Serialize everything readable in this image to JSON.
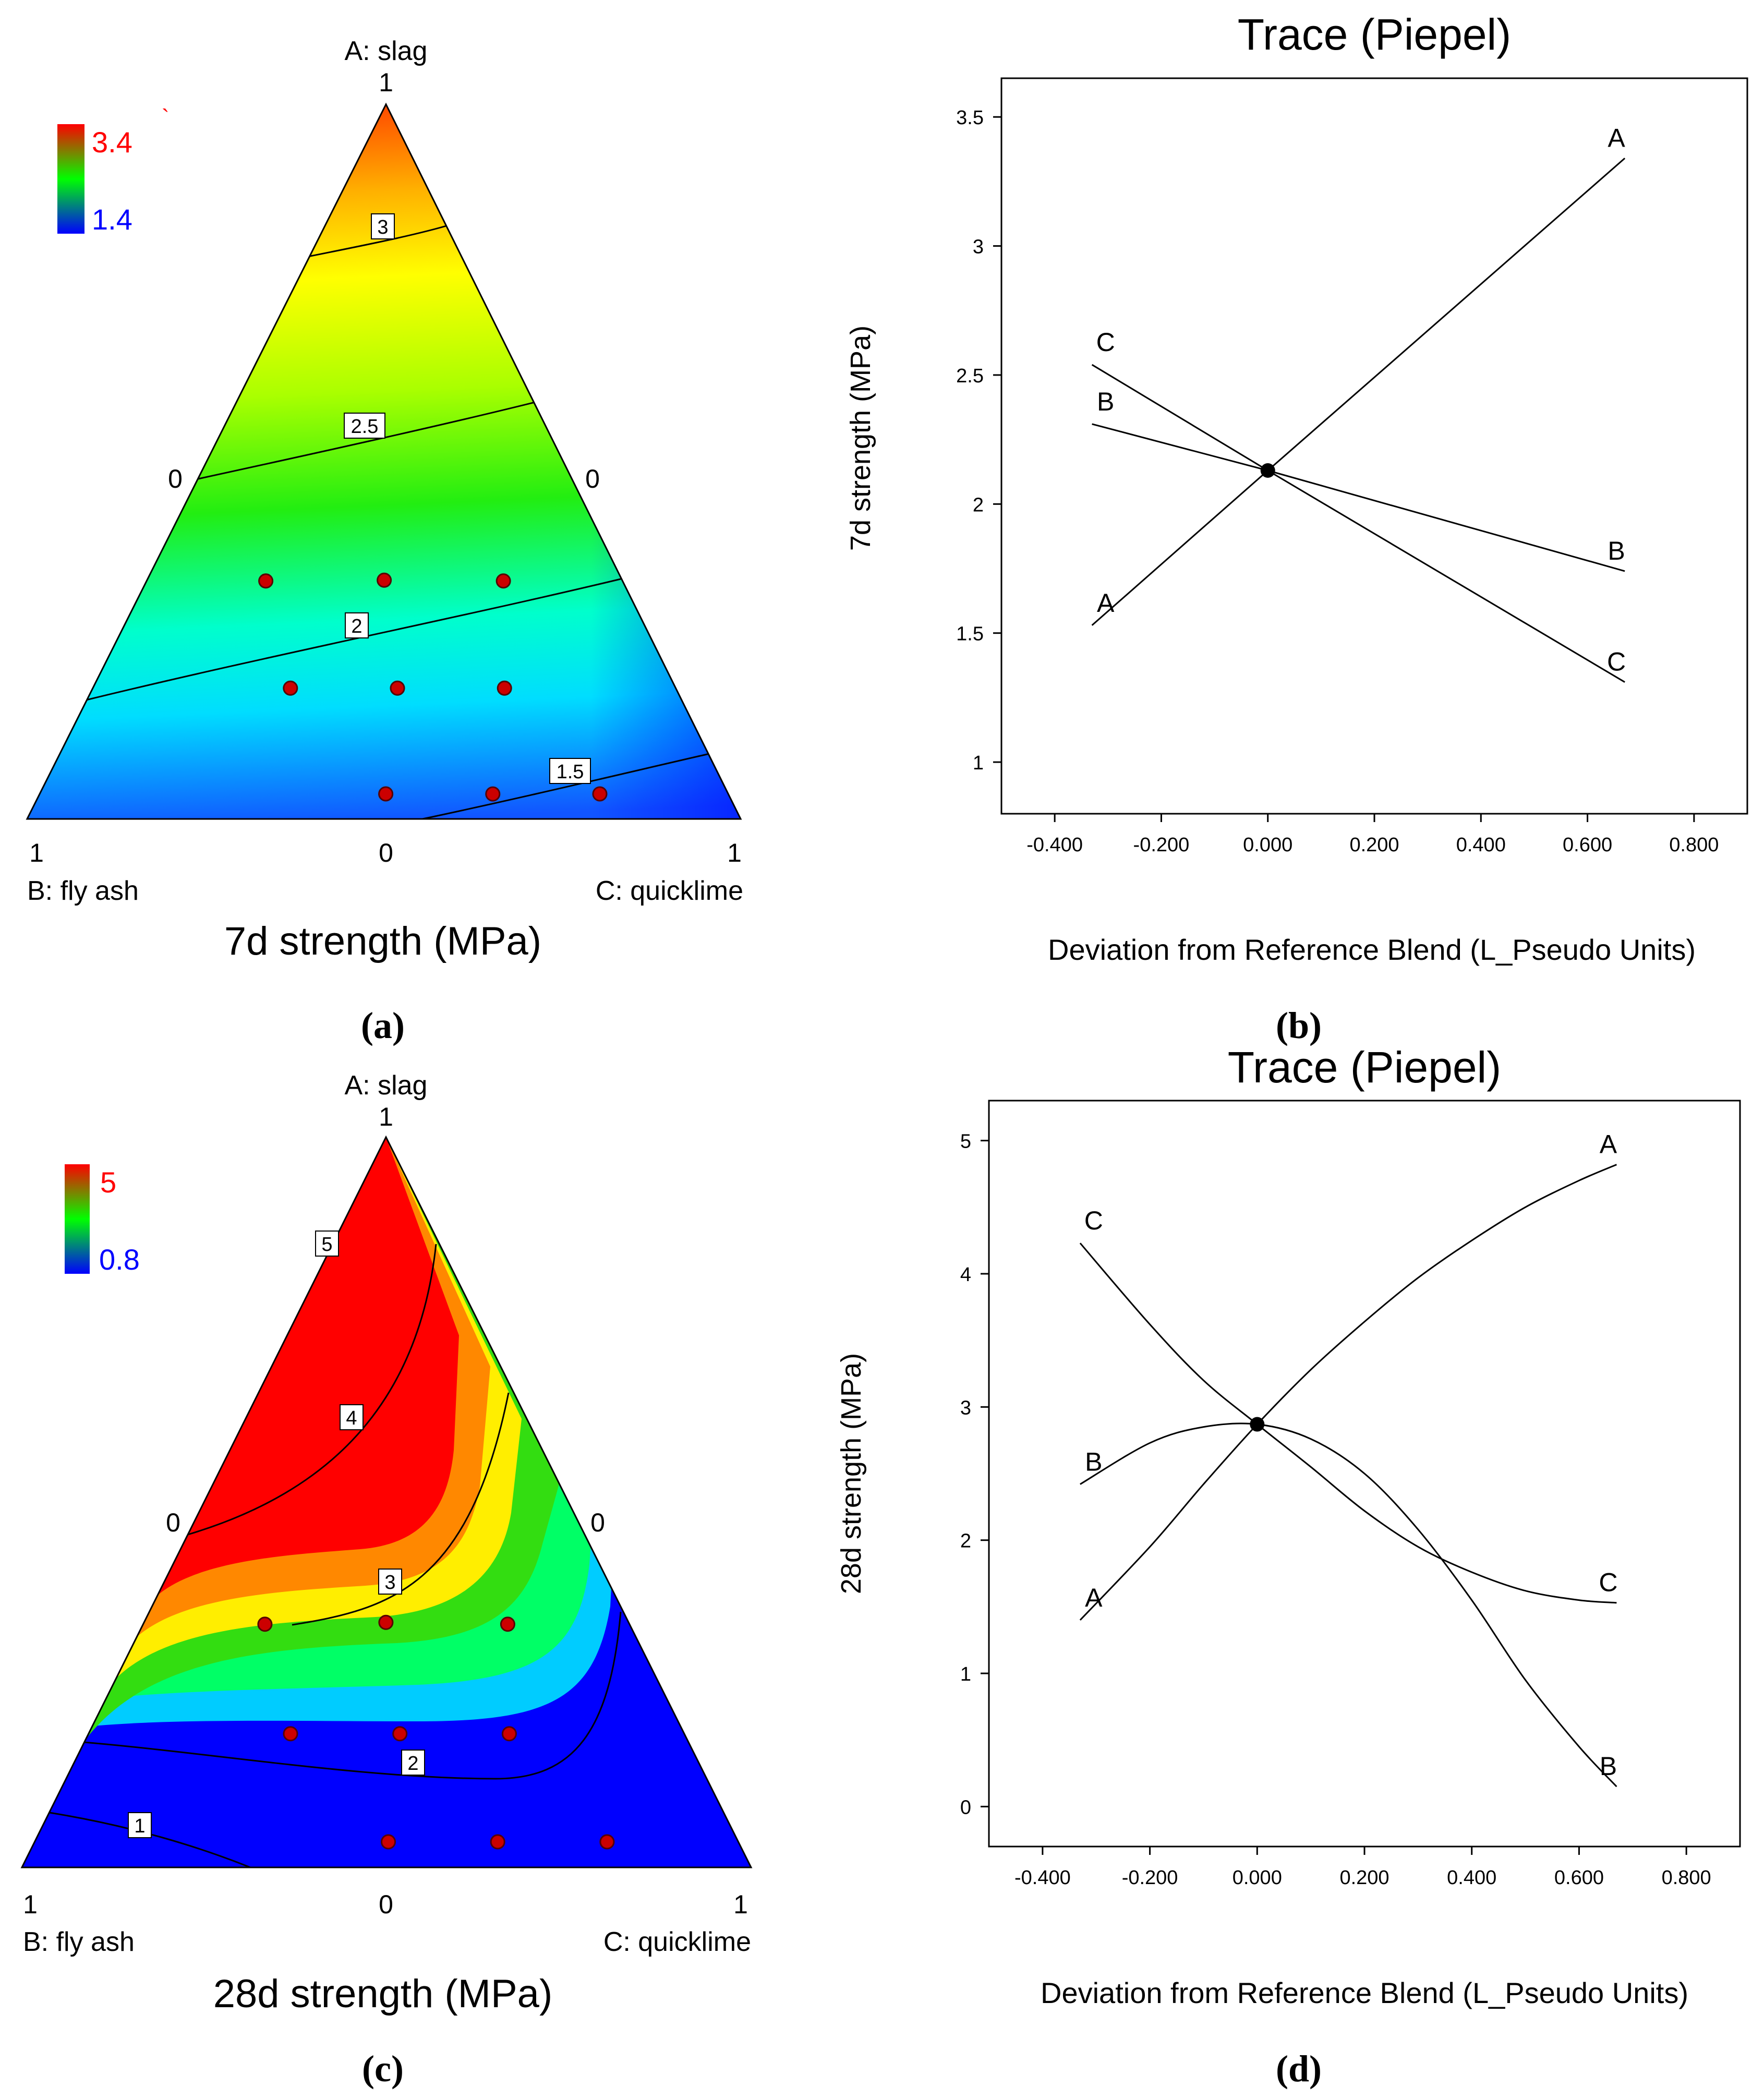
{
  "chart_data": [
    {
      "panel": "a",
      "type": "heatmap",
      "subtype": "ternary-contour",
      "panel_label": "(a)",
      "title": "7d strength (MPa)",
      "components": [
        {
          "label": "A: slag",
          "apex": "top"
        },
        {
          "label": "B: fly ash",
          "apex": "bottom-left"
        },
        {
          "label": "C: quicklime",
          "apex": "bottom-right"
        }
      ],
      "vertex_labels": {
        "top": "1",
        "left": "1",
        "right": "1",
        "left_mid": "0",
        "right_mid": "0",
        "bottom_mid": "0"
      },
      "colorbar": {
        "max": "3.4",
        "min": "1.4",
        "max_color": "#ff0000",
        "min_color": "#0000ff",
        "mark": "`"
      },
      "contour_labels": [
        "3",
        "2.5",
        "2",
        "1.5"
      ],
      "design_points": [
        {
          "A": 0.333,
          "B": 0.5,
          "C": 0.167
        },
        {
          "A": 0.333,
          "B": 0.333,
          "C": 0.333
        },
        {
          "A": 0.333,
          "B": 0.167,
          "C": 0.5
        },
        {
          "A": 0.183,
          "B": 0.54,
          "C": 0.277
        },
        {
          "A": 0.183,
          "B": 0.39,
          "C": 0.427
        },
        {
          "A": 0.183,
          "B": 0.24,
          "C": 0.577
        },
        {
          "A": 0.035,
          "B": 0.48,
          "C": 0.485
        },
        {
          "A": 0.035,
          "B": 0.33,
          "C": 0.635
        },
        {
          "A": 0.035,
          "B": 0.18,
          "C": 0.785
        }
      ]
    },
    {
      "panel": "b",
      "type": "line",
      "panel_label": "(b)",
      "title": "Trace (Piepel)",
      "xlabel": "Deviation from Reference Blend (L_Pseudo Units)",
      "ylabel": "7d strength (MPa)",
      "xlim": [
        -0.5,
        0.9
      ],
      "ylim": [
        0.8,
        3.65
      ],
      "xticks": [
        "-0.400",
        "-0.200",
        "0.000",
        "0.200",
        "0.400",
        "0.600",
        "0.800"
      ],
      "yticks": [
        "1",
        "1.5",
        "2",
        "2.5",
        "3",
        "3.5"
      ],
      "reference_point": {
        "x": 0,
        "y": 2.13
      },
      "series": [
        {
          "name": "A",
          "x": [
            -0.33,
            0,
            0.67
          ],
          "y": [
            1.53,
            2.13,
            3.34
          ]
        },
        {
          "name": "B",
          "x": [
            -0.33,
            0,
            0.67
          ],
          "y": [
            2.31,
            2.13,
            1.74
          ]
        },
        {
          "name": "C",
          "x": [
            -0.33,
            0,
            0.67
          ],
          "y": [
            2.54,
            2.13,
            1.31
          ]
        }
      ]
    },
    {
      "panel": "c",
      "type": "heatmap",
      "subtype": "ternary-contour",
      "panel_label": "(c)",
      "title": "28d strength (MPa)",
      "components": [
        {
          "label": "A: slag",
          "apex": "top"
        },
        {
          "label": "B: fly ash",
          "apex": "bottom-left"
        },
        {
          "label": "C: quicklime",
          "apex": "bottom-right"
        }
      ],
      "vertex_labels": {
        "top": "1",
        "left": "1",
        "right": "1",
        "left_mid": "0",
        "right_mid": "0",
        "bottom_mid": "0"
      },
      "colorbar": {
        "max": "5",
        "min": "0.8",
        "max_color": "#ff0000",
        "min_color": "#0000ff"
      },
      "contour_labels": [
        "5",
        "4",
        "3",
        "2",
        "1"
      ],
      "design_points": [
        {
          "A": 0.333,
          "B": 0.5,
          "C": 0.167
        },
        {
          "A": 0.333,
          "B": 0.333,
          "C": 0.333
        },
        {
          "A": 0.333,
          "B": 0.167,
          "C": 0.5
        },
        {
          "A": 0.183,
          "B": 0.54,
          "C": 0.277
        },
        {
          "A": 0.183,
          "B": 0.39,
          "C": 0.427
        },
        {
          "A": 0.183,
          "B": 0.24,
          "C": 0.577
        },
        {
          "A": 0.035,
          "B": 0.48,
          "C": 0.485
        },
        {
          "A": 0.035,
          "B": 0.33,
          "C": 0.635
        },
        {
          "A": 0.035,
          "B": 0.18,
          "C": 0.785
        }
      ]
    },
    {
      "panel": "d",
      "type": "line",
      "panel_label": "(d)",
      "title": "Trace (Piepel)",
      "xlabel": "Deviation from Reference Blend (L_Pseudo Units)",
      "ylabel": "28d strength (MPa)",
      "xlim": [
        -0.5,
        0.9
      ],
      "ylim": [
        -0.3,
        5.3
      ],
      "xticks": [
        "-0.400",
        "-0.200",
        "0.000",
        "0.200",
        "0.400",
        "0.600",
        "0.800"
      ],
      "yticks": [
        "0",
        "1",
        "2",
        "3",
        "4",
        "5"
      ],
      "reference_point": {
        "x": 0,
        "y": 2.87
      },
      "series": [
        {
          "name": "A",
          "x": [
            -0.33,
            -0.2,
            -0.1,
            0,
            0.1,
            0.2,
            0.3,
            0.4,
            0.5,
            0.6,
            0.67
          ],
          "y": [
            1.4,
            1.95,
            2.42,
            2.87,
            3.28,
            3.64,
            3.97,
            4.25,
            4.5,
            4.7,
            4.82
          ]
        },
        {
          "name": "B",
          "x": [
            -0.33,
            -0.2,
            -0.1,
            0,
            0.1,
            0.2,
            0.3,
            0.4,
            0.5,
            0.6,
            0.67
          ],
          "y": [
            2.42,
            2.73,
            2.85,
            2.87,
            2.76,
            2.5,
            2.08,
            1.55,
            0.95,
            0.45,
            0.15
          ]
        },
        {
          "name": "C",
          "x": [
            -0.33,
            -0.2,
            -0.1,
            0,
            0.1,
            0.2,
            0.3,
            0.4,
            0.5,
            0.6,
            0.67
          ],
          "y": [
            4.23,
            3.62,
            3.2,
            2.87,
            2.55,
            2.22,
            1.95,
            1.76,
            1.62,
            1.55,
            1.53
          ]
        }
      ]
    }
  ]
}
